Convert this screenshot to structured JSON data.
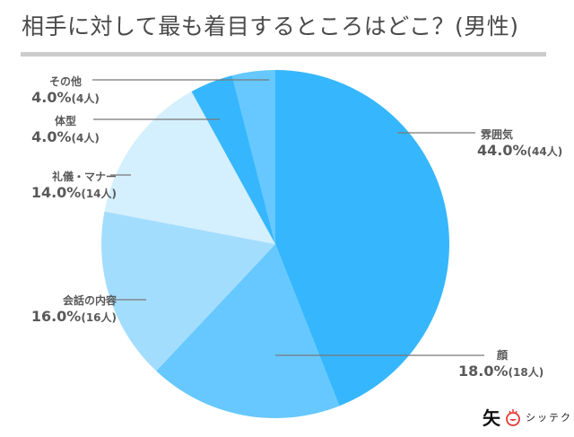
{
  "title": "相手に対して最も着目するところはどこ？(男性)",
  "chart_data": {
    "type": "pie",
    "title": "相手に対して最も着目するところはどこ？(男性)",
    "categories": [
      "雰囲気",
      "顔",
      "会話の内容",
      "礼儀・マナー",
      "体型",
      "その他"
    ],
    "values": [
      44.0,
      18.0,
      16.0,
      14.0,
      4.0,
      4.0
    ],
    "counts": [
      44,
      18,
      16,
      14,
      4,
      4
    ],
    "colors": [
      "#36b7fd",
      "#66c8fe",
      "#a3ddfe",
      "#d4effd",
      "#36b7fd",
      "#66c8fe"
    ],
    "start_angle": "top (12 o'clock)",
    "direction": "clockwise",
    "legend": "none (leader-line labels)"
  },
  "labels": [
    {
      "name": "雰囲気",
      "pct": "44.0%",
      "cnt": "(44人)"
    },
    {
      "name": "顔",
      "pct": "18.0%",
      "cnt": "(18人)"
    },
    {
      "name": "会話の内容",
      "pct": "16.0%",
      "cnt": "(16人)"
    },
    {
      "name": "礼儀・マナー",
      "pct": "14.0%",
      "cnt": "(14人)"
    },
    {
      "name": "体型",
      "pct": "4.0%",
      "cnt": "(4人)"
    },
    {
      "name": "その他",
      "pct": "4.0%",
      "cnt": "(4人)"
    }
  ],
  "logo": {
    "mark": "矢",
    "text": "シッテク"
  }
}
